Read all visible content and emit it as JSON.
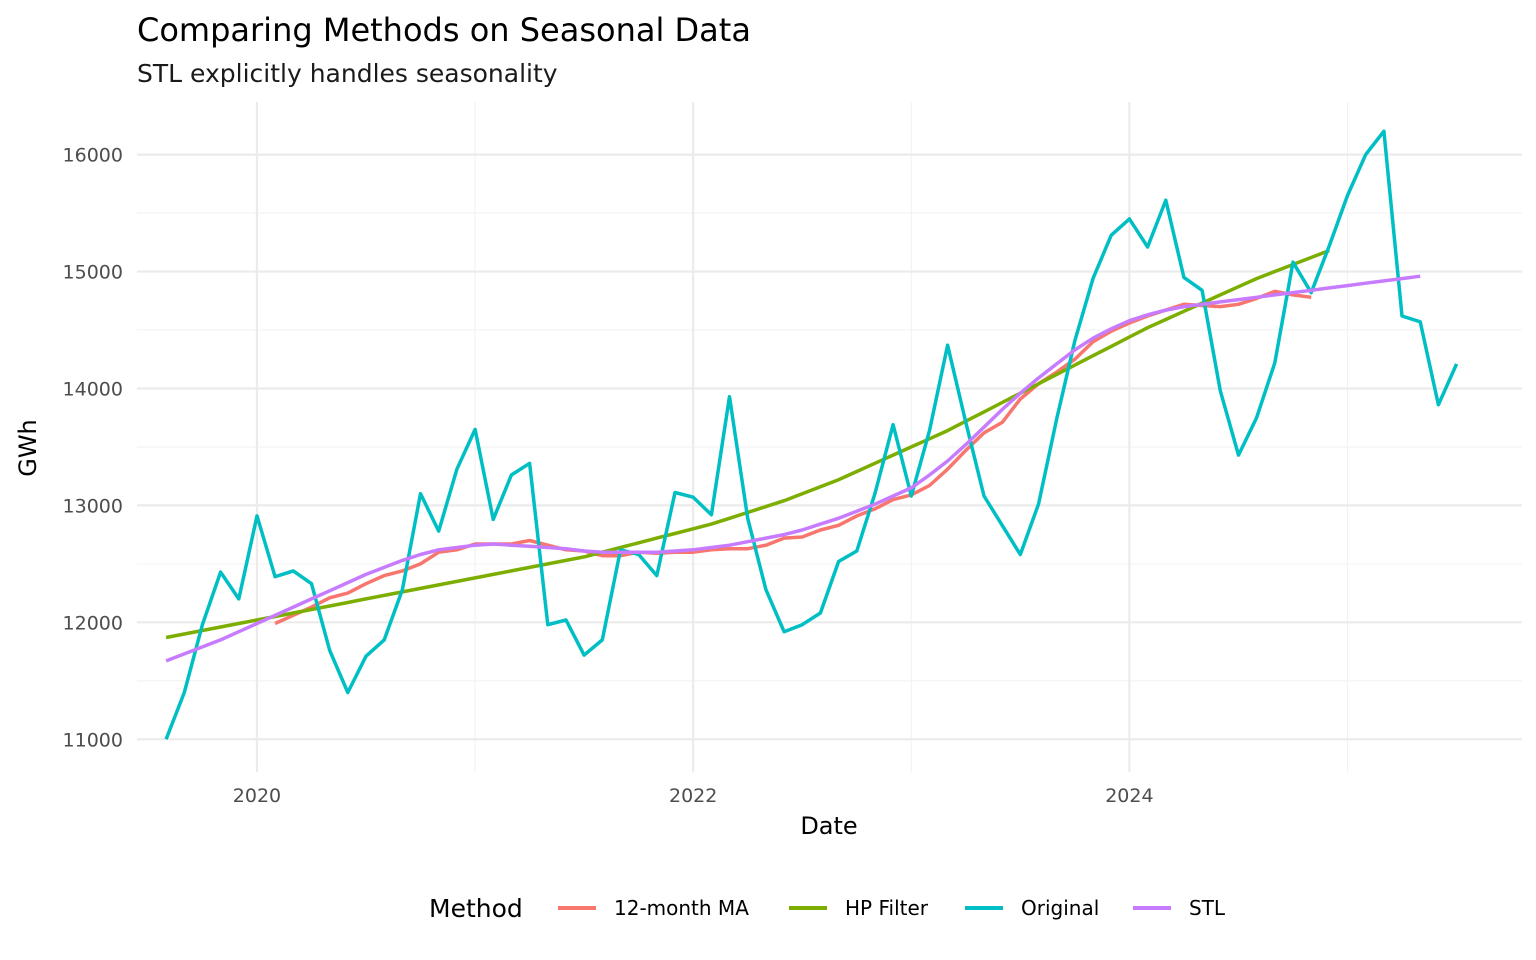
{
  "chart_data": {
    "type": "line",
    "title": "Comparing Methods on Seasonal Data",
    "subtitle": "STL explicitly handles seasonality",
    "xlabel": "Date",
    "ylabel": "GWh",
    "x_start": "2019-08",
    "x_frequency": "monthly",
    "x_ticks": [
      {
        "label": "2020",
        "value": 2020
      },
      {
        "label": "2022",
        "value": 2022
      },
      {
        "label": "2024",
        "value": 2024
      }
    ],
    "x_minor_ticks": [
      2021,
      2023,
      2025
    ],
    "xlim": [
      2019.45,
      2025.8
    ],
    "y_ticks": [
      11000,
      12000,
      13000,
      14000,
      15000,
      16000
    ],
    "y_tick_labels": [
      "11000",
      "12000",
      "13000",
      "14000",
      "15000",
      "16000"
    ],
    "ylim": [
      10720,
      16450
    ],
    "grid": true,
    "legend": {
      "title": "Method",
      "position": "bottom",
      "entries": [
        {
          "label": "12-month MA",
          "color": "#F8766D"
        },
        {
          "label": "HP Filter",
          "color": "#7CAE00"
        },
        {
          "label": "Original",
          "color": "#00BFC4"
        },
        {
          "label": "STL",
          "color": "#C77CFF"
        }
      ]
    },
    "series": [
      {
        "name": "12-month MA",
        "color": "#F8766D",
        "start_index": 6,
        "values": [
          11990,
          12060,
          12130,
          12210,
          12250,
          12330,
          12400,
          12440,
          12500,
          12600,
          12620,
          12670,
          12670,
          12670,
          12700,
          12660,
          12620,
          12610,
          12570,
          12570,
          12600,
          12590,
          12600,
          12600,
          12620,
          12630,
          12630,
          12660,
          12720,
          12730,
          12790,
          12830,
          12910,
          12970,
          13050,
          13090,
          13170,
          13310,
          13470,
          13620,
          13710,
          13910,
          14040,
          14140,
          14250,
          14400,
          14490,
          14560,
          14620,
          14670,
          14720,
          14710,
          14700,
          14720,
          14770,
          14830,
          14800,
          14780
        ]
      },
      {
        "name": "HP Filter",
        "color": "#7CAE00",
        "start_index": 0,
        "values": [
          11870,
          11900,
          11930,
          11960,
          11990,
          12020,
          12050,
          12080,
          12110,
          12140,
          12170,
          12200,
          12230,
          12260,
          12290,
          12320,
          12350,
          12380,
          12410,
          12440,
          12470,
          12500,
          12530,
          12560,
          12600,
          12640,
          12680,
          12720,
          12760,
          12800,
          12840,
          12890,
          12940,
          12990,
          13040,
          13100,
          13160,
          13220,
          13290,
          13360,
          13430,
          13500,
          13570,
          13640,
          13720,
          13800,
          13880,
          13960,
          14040,
          14120,
          14200,
          14280,
          14360,
          14440,
          14520,
          14590,
          14660,
          14730,
          14800,
          14870,
          14940,
          15000,
          15060,
          15120,
          15180
        ]
      },
      {
        "name": "Original",
        "color": "#00BFC4",
        "start_index": 0,
        "values": [
          11000,
          11400,
          11980,
          12430,
          12200,
          12910,
          12390,
          12440,
          12330,
          11760,
          11400,
          11710,
          11850,
          12280,
          13100,
          12780,
          13310,
          13650,
          12880,
          13260,
          13360,
          11980,
          12020,
          11720,
          11850,
          12620,
          12580,
          12400,
          13110,
          13070,
          12920,
          13930,
          12890,
          12280,
          11920,
          11980,
          12080,
          12520,
          12610,
          13100,
          13690,
          13080,
          13640,
          14370,
          13710,
          13080,
          12830,
          12580,
          13010,
          13740,
          14410,
          14940,
          15310,
          15450,
          15210,
          15610,
          14950,
          14840,
          13980,
          13430,
          13750,
          14220,
          15080,
          14820,
          15220,
          15650,
          16000,
          16200,
          14620,
          14570,
          13860,
          14210
        ]
      },
      {
        "name": "STL",
        "color": "#C77CFF",
        "start_index": 0,
        "values": [
          11670,
          11730,
          11790,
          11850,
          11920,
          11990,
          12060,
          12130,
          12200,
          12270,
          12340,
          12410,
          12470,
          12530,
          12580,
          12620,
          12640,
          12660,
          12670,
          12660,
          12650,
          12640,
          12630,
          12610,
          12600,
          12600,
          12600,
          12600,
          12610,
          12620,
          12640,
          12660,
          12690,
          12720,
          12750,
          12790,
          12840,
          12890,
          12950,
          13010,
          13080,
          13150,
          13260,
          13380,
          13520,
          13670,
          13820,
          13960,
          14090,
          14210,
          14330,
          14430,
          14510,
          14580,
          14630,
          14670,
          14700,
          14720,
          14740,
          14760,
          14780,
          14800,
          14820,
          14840,
          14860,
          14880,
          14900,
          14920,
          14940,
          14960
        ]
      }
    ]
  }
}
